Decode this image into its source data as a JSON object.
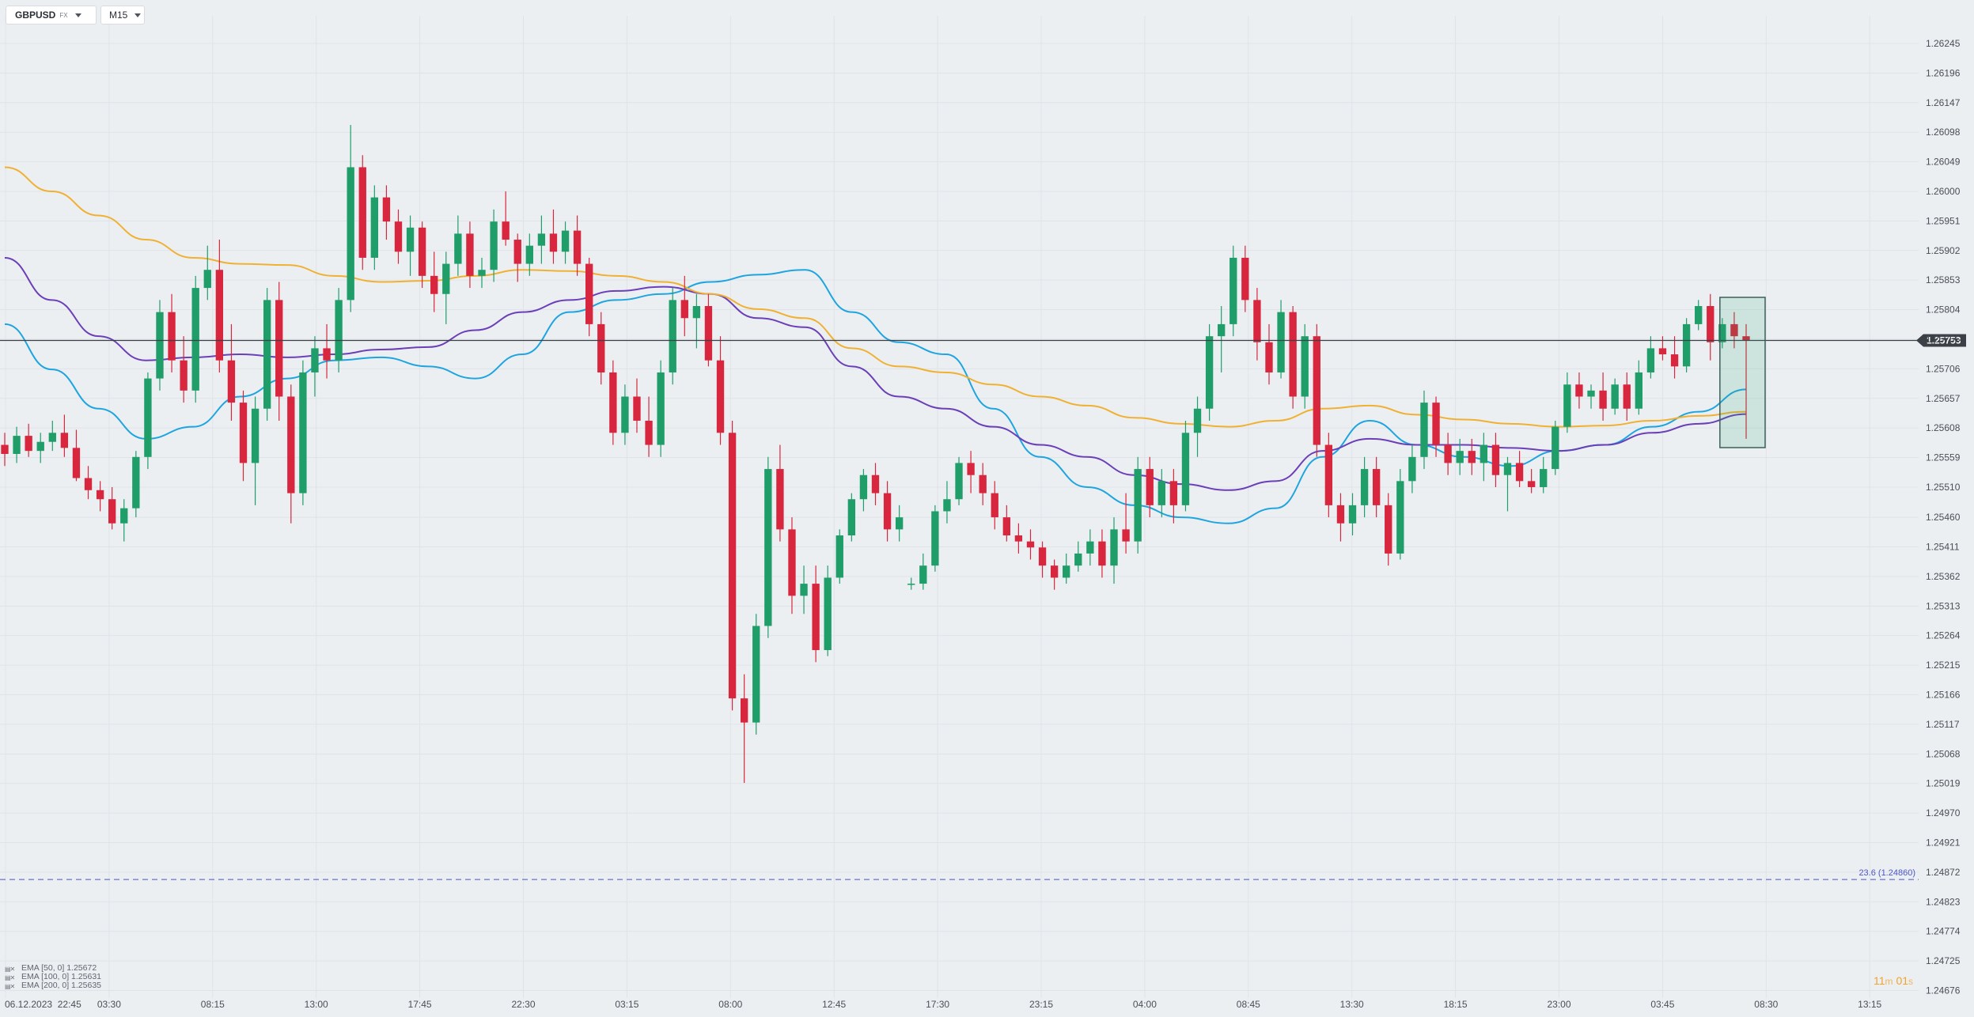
{
  "toolbar": {
    "symbol": "GBPUSD",
    "symbol_sub": "FX",
    "timeframe": "M15"
  },
  "colors": {
    "background": "#eceff2",
    "grid": "#dfe3e8",
    "up_candle": "#1f9e6a",
    "down_candle": "#d7263d",
    "ema50": "#1ea5e0",
    "ema100": "#6b3fb8",
    "ema200": "#f0b132",
    "price_line": "#3b4047",
    "fib_line": "#4a55c9",
    "countdown": "#f2a32a"
  },
  "indicators": [
    {
      "label": "EMA [50, 0]",
      "value": "1.25672",
      "icon": "indicator-settings-icon"
    },
    {
      "label": "EMA [100, 0]",
      "value": "1.25631",
      "icon": "indicator-settings-icon"
    },
    {
      "label": "EMA [200, 0]",
      "value": "1.25635",
      "icon": "indicator-settings-icon"
    }
  ],
  "countdown": {
    "minutes": "11",
    "minutes_unit": "m",
    "seconds": "01",
    "seconds_unit": "s"
  },
  "chart_data": {
    "type": "candlestick",
    "symbol": "GBPUSD",
    "timeframe": "M15",
    "y_ticks": [
      "1.26245",
      "1.26196",
      "1.26147",
      "1.26098",
      "1.26049",
      "1.26000",
      "1.25951",
      "1.25902",
      "1.25853",
      "1.25804",
      "1.25755",
      "1.25706",
      "1.25657",
      "1.25608",
      "1.25559",
      "1.25510",
      "1.25460",
      "1.25411",
      "1.25362",
      "1.25313",
      "1.25264",
      "1.25215",
      "1.25166",
      "1.25117",
      "1.25068",
      "1.25019",
      "1.24970",
      "1.24921",
      "1.24872",
      "1.24823",
      "1.24774",
      "1.24725",
      "1.24676"
    ],
    "x_ticks": [
      "06.12.2023  22:45",
      "03:30",
      "08:15",
      "13:00",
      "17:45",
      "22:30",
      "03:15",
      "08:00",
      "12:45",
      "17:30",
      "23:15",
      "04:00",
      "08:45",
      "13:30",
      "18:15",
      "23:00",
      "03:45",
      "08:30",
      "13:15"
    ],
    "ylim": [
      1.2465,
      1.26268
    ],
    "current_price": {
      "value": "1.25753"
    },
    "fib_level": {
      "label": "23.6 (1.24860)",
      "value": 1.2486
    },
    "ema_series": [
      {
        "name": "EMA [50, 0]",
        "color": "#1ea5e0",
        "values": [
          1.2578,
          1.25705,
          1.2564,
          1.2559,
          1.2561,
          1.2566,
          1.2569,
          1.2572,
          1.25725,
          1.2571,
          1.2569,
          1.2573,
          1.258,
          1.2582,
          1.2583,
          1.2585,
          1.25862,
          1.2587,
          1.258,
          1.2575,
          1.2573,
          1.2564,
          1.2556,
          1.2551,
          1.2548,
          1.2546,
          1.2545,
          1.25475,
          1.2556,
          1.2562,
          1.2558,
          1.2556,
          1.25545,
          1.2557,
          1.2558,
          1.2561,
          1.25635,
          1.25672
        ]
      },
      {
        "name": "EMA [100, 0]",
        "color": "#6b3fb8",
        "values": [
          1.2589,
          1.2582,
          1.2576,
          1.2572,
          1.25725,
          1.2573,
          1.25725,
          1.2573,
          1.25738,
          1.25742,
          1.2577,
          1.258,
          1.2582,
          1.25835,
          1.25842,
          1.2583,
          1.2579,
          1.25775,
          1.2571,
          1.2566,
          1.2564,
          1.2561,
          1.2558,
          1.2556,
          1.2553,
          1.25515,
          1.25505,
          1.2552,
          1.2557,
          1.2559,
          1.2558,
          1.2558,
          1.25575,
          1.2557,
          1.2558,
          1.256,
          1.25615,
          1.25631
        ]
      },
      {
        "name": "EMA [200, 0]",
        "color": "#f0b132",
        "values": [
          1.2604,
          1.26,
          1.2596,
          1.2592,
          1.2589,
          1.2588,
          1.25878,
          1.2586,
          1.2585,
          1.25852,
          1.2586,
          1.2587,
          1.25868,
          1.2586,
          1.2585,
          1.2583,
          1.25805,
          1.2579,
          1.2574,
          1.2571,
          1.257,
          1.2568,
          1.2566,
          1.25645,
          1.25625,
          1.25615,
          1.2561,
          1.2562,
          1.2564,
          1.25645,
          1.2563,
          1.25622,
          1.25615,
          1.2561,
          1.25612,
          1.2562,
          1.25628,
          1.25635
        ]
      }
    ],
    "candles": [
      {
        "o": 1.2558,
        "h": 1.256,
        "l": 1.25545,
        "c": 1.25565
      },
      {
        "o": 1.25565,
        "h": 1.2561,
        "l": 1.2555,
        "c": 1.25595
      },
      {
        "o": 1.25595,
        "h": 1.25615,
        "l": 1.2556,
        "c": 1.2557
      },
      {
        "o": 1.2557,
        "h": 1.256,
        "l": 1.2555,
        "c": 1.25585
      },
      {
        "o": 1.25585,
        "h": 1.2562,
        "l": 1.2557,
        "c": 1.256
      },
      {
        "o": 1.256,
        "h": 1.2563,
        "l": 1.2556,
        "c": 1.25575
      },
      {
        "o": 1.25575,
        "h": 1.25605,
        "l": 1.2552,
        "c": 1.25525
      },
      {
        "o": 1.25525,
        "h": 1.25545,
        "l": 1.2549,
        "c": 1.25505
      },
      {
        "o": 1.25505,
        "h": 1.2552,
        "l": 1.2547,
        "c": 1.2549
      },
      {
        "o": 1.2549,
        "h": 1.2551,
        "l": 1.2544,
        "c": 1.2545
      },
      {
        "o": 1.2545,
        "h": 1.2549,
        "l": 1.2542,
        "c": 1.25475
      },
      {
        "o": 1.25475,
        "h": 1.2557,
        "l": 1.2546,
        "c": 1.2556
      },
      {
        "o": 1.2556,
        "h": 1.257,
        "l": 1.2554,
        "c": 1.2569
      },
      {
        "o": 1.2569,
        "h": 1.2582,
        "l": 1.2567,
        "c": 1.258
      },
      {
        "o": 1.258,
        "h": 1.2583,
        "l": 1.257,
        "c": 1.2572
      },
      {
        "o": 1.2572,
        "h": 1.2576,
        "l": 1.2565,
        "c": 1.2567
      },
      {
        "o": 1.2567,
        "h": 1.2586,
        "l": 1.2565,
        "c": 1.2584
      },
      {
        "o": 1.2584,
        "h": 1.2591,
        "l": 1.2582,
        "c": 1.2587
      },
      {
        "o": 1.2587,
        "h": 1.2592,
        "l": 1.257,
        "c": 1.2572
      },
      {
        "o": 1.2572,
        "h": 1.2578,
        "l": 1.2562,
        "c": 1.2565
      },
      {
        "o": 1.2565,
        "h": 1.2567,
        "l": 1.2552,
        "c": 1.2555
      },
      {
        "o": 1.2555,
        "h": 1.2566,
        "l": 1.2548,
        "c": 1.2564
      },
      {
        "o": 1.2564,
        "h": 1.2584,
        "l": 1.2562,
        "c": 1.2582
      },
      {
        "o": 1.2582,
        "h": 1.2585,
        "l": 1.2562,
        "c": 1.2566
      },
      {
        "o": 1.2566,
        "h": 1.2568,
        "l": 1.2545,
        "c": 1.255
      },
      {
        "o": 1.255,
        "h": 1.2572,
        "l": 1.2548,
        "c": 1.257
      },
      {
        "o": 1.257,
        "h": 1.2576,
        "l": 1.2566,
        "c": 1.2574
      },
      {
        "o": 1.2574,
        "h": 1.2578,
        "l": 1.2569,
        "c": 1.2572
      },
      {
        "o": 1.2572,
        "h": 1.2584,
        "l": 1.257,
        "c": 1.2582
      },
      {
        "o": 1.2582,
        "h": 1.2611,
        "l": 1.258,
        "c": 1.2604
      },
      {
        "o": 1.2604,
        "h": 1.2606,
        "l": 1.2587,
        "c": 1.2589
      },
      {
        "o": 1.2589,
        "h": 1.2601,
        "l": 1.2587,
        "c": 1.2599
      },
      {
        "o": 1.2599,
        "h": 1.2601,
        "l": 1.2592,
        "c": 1.2595
      },
      {
        "o": 1.2595,
        "h": 1.2597,
        "l": 1.2588,
        "c": 1.259
      },
      {
        "o": 1.259,
        "h": 1.2596,
        "l": 1.2586,
        "c": 1.2594
      },
      {
        "o": 1.2594,
        "h": 1.2595,
        "l": 1.2584,
        "c": 1.2586
      },
      {
        "o": 1.2586,
        "h": 1.259,
        "l": 1.258,
        "c": 1.2583
      },
      {
        "o": 1.2583,
        "h": 1.259,
        "l": 1.2578,
        "c": 1.2588
      },
      {
        "o": 1.2588,
        "h": 1.2596,
        "l": 1.2586,
        "c": 1.2593
      },
      {
        "o": 1.2593,
        "h": 1.2595,
        "l": 1.2584,
        "c": 1.2586
      },
      {
        "o": 1.2586,
        "h": 1.2589,
        "l": 1.2584,
        "c": 1.2587
      },
      {
        "o": 1.2587,
        "h": 1.2597,
        "l": 1.2585,
        "c": 1.2595
      },
      {
        "o": 1.2595,
        "h": 1.26,
        "l": 1.2591,
        "c": 1.2592
      },
      {
        "o": 1.2592,
        "h": 1.2593,
        "l": 1.2585,
        "c": 1.2588
      },
      {
        "o": 1.2588,
        "h": 1.2593,
        "l": 1.2586,
        "c": 1.2591
      },
      {
        "o": 1.2591,
        "h": 1.2596,
        "l": 1.2588,
        "c": 1.2593
      },
      {
        "o": 1.2593,
        "h": 1.2597,
        "l": 1.2588,
        "c": 1.259
      },
      {
        "o": 1.259,
        "h": 1.2595,
        "l": 1.2588,
        "c": 1.25935
      },
      {
        "o": 1.25935,
        "h": 1.2596,
        "l": 1.2586,
        "c": 1.2588
      },
      {
        "o": 1.2588,
        "h": 1.2589,
        "l": 1.2576,
        "c": 1.2578
      },
      {
        "o": 1.2578,
        "h": 1.258,
        "l": 1.2568,
        "c": 1.257
      },
      {
        "o": 1.257,
        "h": 1.2572,
        "l": 1.2558,
        "c": 1.256
      },
      {
        "o": 1.256,
        "h": 1.2568,
        "l": 1.2558,
        "c": 1.2566
      },
      {
        "o": 1.2566,
        "h": 1.2569,
        "l": 1.256,
        "c": 1.2562
      },
      {
        "o": 1.2562,
        "h": 1.2566,
        "l": 1.2556,
        "c": 1.2558
      },
      {
        "o": 1.2558,
        "h": 1.2572,
        "l": 1.2556,
        "c": 1.257
      },
      {
        "o": 1.257,
        "h": 1.2584,
        "l": 1.2568,
        "c": 1.2582
      },
      {
        "o": 1.2582,
        "h": 1.2586,
        "l": 1.2576,
        "c": 1.2579
      },
      {
        "o": 1.2579,
        "h": 1.2583,
        "l": 1.2574,
        "c": 1.2581
      },
      {
        "o": 1.2581,
        "h": 1.2583,
        "l": 1.2571,
        "c": 1.2572
      },
      {
        "o": 1.2572,
        "h": 1.2576,
        "l": 1.2558,
        "c": 1.256
      },
      {
        "o": 1.256,
        "h": 1.2562,
        "l": 1.2514,
        "c": 1.2516
      },
      {
        "o": 1.2516,
        "h": 1.252,
        "l": 1.2502,
        "c": 1.2512
      },
      {
        "o": 1.2512,
        "h": 1.253,
        "l": 1.251,
        "c": 1.2528
      },
      {
        "o": 1.2528,
        "h": 1.2556,
        "l": 1.2526,
        "c": 1.2554
      },
      {
        "o": 1.2554,
        "h": 1.2558,
        "l": 1.2542,
        "c": 1.2544
      },
      {
        "o": 1.2544,
        "h": 1.2546,
        "l": 1.253,
        "c": 1.2533
      },
      {
        "o": 1.2533,
        "h": 1.2538,
        "l": 1.253,
        "c": 1.2535
      },
      {
        "o": 1.2535,
        "h": 1.2538,
        "l": 1.2522,
        "c": 1.2524
      },
      {
        "o": 1.2524,
        "h": 1.2538,
        "l": 1.2523,
        "c": 1.2536
      },
      {
        "o": 1.2536,
        "h": 1.2544,
        "l": 1.2535,
        "c": 1.2543
      },
      {
        "o": 1.2543,
        "h": 1.255,
        "l": 1.2542,
        "c": 1.2549
      },
      {
        "o": 1.2549,
        "h": 1.2554,
        "l": 1.2547,
        "c": 1.2553
      },
      {
        "o": 1.2553,
        "h": 1.2555,
        "l": 1.2548,
        "c": 1.255
      },
      {
        "o": 1.255,
        "h": 1.2552,
        "l": 1.2542,
        "c": 1.2544
      },
      {
        "o": 1.2544,
        "h": 1.2548,
        "l": 1.2542,
        "c": 1.2546
      },
      {
        "o": 1.2535,
        "h": 1.2536,
        "l": 1.2534,
        "c": 1.2535
      },
      {
        "o": 1.2535,
        "h": 1.254,
        "l": 1.2534,
        "c": 1.2538
      },
      {
        "o": 1.2538,
        "h": 1.2548,
        "l": 1.2537,
        "c": 1.2547
      },
      {
        "o": 1.2547,
        "h": 1.2552,
        "l": 1.2545,
        "c": 1.2549
      },
      {
        "o": 1.2549,
        "h": 1.2556,
        "l": 1.2548,
        "c": 1.2555
      },
      {
        "o": 1.2555,
        "h": 1.2557,
        "l": 1.255,
        "c": 1.2553
      },
      {
        "o": 1.2553,
        "h": 1.2555,
        "l": 1.2548,
        "c": 1.255
      },
      {
        "o": 1.255,
        "h": 1.2552,
        "l": 1.2544,
        "c": 1.2546
      },
      {
        "o": 1.2546,
        "h": 1.2548,
        "l": 1.2542,
        "c": 1.2543
      },
      {
        "o": 1.2543,
        "h": 1.2545,
        "l": 1.254,
        "c": 1.2542
      },
      {
        "o": 1.2542,
        "h": 1.2544,
        "l": 1.2539,
        "c": 1.2541
      },
      {
        "o": 1.2541,
        "h": 1.2542,
        "l": 1.2536,
        "c": 1.2538
      },
      {
        "o": 1.2538,
        "h": 1.2539,
        "l": 1.2534,
        "c": 1.2536
      },
      {
        "o": 1.2536,
        "h": 1.254,
        "l": 1.2535,
        "c": 1.2538
      },
      {
        "o": 1.2538,
        "h": 1.2542,
        "l": 1.2537,
        "c": 1.254
      },
      {
        "o": 1.254,
        "h": 1.2544,
        "l": 1.2538,
        "c": 1.2542
      },
      {
        "o": 1.2542,
        "h": 1.2544,
        "l": 1.2536,
        "c": 1.2538
      },
      {
        "o": 1.2538,
        "h": 1.2546,
        "l": 1.2535,
        "c": 1.2544
      },
      {
        "o": 1.2544,
        "h": 1.255,
        "l": 1.254,
        "c": 1.2542
      },
      {
        "o": 1.2542,
        "h": 1.2556,
        "l": 1.254,
        "c": 1.2554
      },
      {
        "o": 1.2554,
        "h": 1.2556,
        "l": 1.2546,
        "c": 1.2548
      },
      {
        "o": 1.2548,
        "h": 1.2554,
        "l": 1.2546,
        "c": 1.2552
      },
      {
        "o": 1.2552,
        "h": 1.2554,
        "l": 1.2545,
        "c": 1.2548
      },
      {
        "o": 1.2548,
        "h": 1.2562,
        "l": 1.2547,
        "c": 1.256
      },
      {
        "o": 1.256,
        "h": 1.2566,
        "l": 1.2556,
        "c": 1.2564
      },
      {
        "o": 1.2564,
        "h": 1.2578,
        "l": 1.2562,
        "c": 1.2576
      },
      {
        "o": 1.2576,
        "h": 1.2581,
        "l": 1.257,
        "c": 1.2578
      },
      {
        "o": 1.2578,
        "h": 1.2591,
        "l": 1.2576,
        "c": 1.2589
      },
      {
        "o": 1.2589,
        "h": 1.2591,
        "l": 1.258,
        "c": 1.2582
      },
      {
        "o": 1.2582,
        "h": 1.2584,
        "l": 1.2572,
        "c": 1.2575
      },
      {
        "o": 1.2575,
        "h": 1.2578,
        "l": 1.2568,
        "c": 1.257
      },
      {
        "o": 1.257,
        "h": 1.2582,
        "l": 1.2569,
        "c": 1.258
      },
      {
        "o": 1.258,
        "h": 1.2581,
        "l": 1.2564,
        "c": 1.2566
      },
      {
        "o": 1.2566,
        "h": 1.2578,
        "l": 1.2564,
        "c": 1.2576
      },
      {
        "o": 1.2576,
        "h": 1.2578,
        "l": 1.2556,
        "c": 1.2558
      },
      {
        "o": 1.2558,
        "h": 1.256,
        "l": 1.2546,
        "c": 1.2548
      },
      {
        "o": 1.2548,
        "h": 1.255,
        "l": 1.2542,
        "c": 1.2545
      },
      {
        "o": 1.2545,
        "h": 1.255,
        "l": 1.2543,
        "c": 1.2548
      },
      {
        "o": 1.2548,
        "h": 1.2556,
        "l": 1.2546,
        "c": 1.2554
      },
      {
        "o": 1.2554,
        "h": 1.2556,
        "l": 1.2546,
        "c": 1.2548
      },
      {
        "o": 1.2548,
        "h": 1.255,
        "l": 1.2538,
        "c": 1.254
      },
      {
        "o": 1.254,
        "h": 1.2554,
        "l": 1.2539,
        "c": 1.2552
      },
      {
        "o": 1.2552,
        "h": 1.2558,
        "l": 1.255,
        "c": 1.2556
      },
      {
        "o": 1.2556,
        "h": 1.2567,
        "l": 1.2554,
        "c": 1.2565
      },
      {
        "o": 1.2565,
        "h": 1.2566,
        "l": 1.2556,
        "c": 1.2558
      },
      {
        "o": 1.2558,
        "h": 1.256,
        "l": 1.2553,
        "c": 1.2555
      },
      {
        "o": 1.2555,
        "h": 1.2559,
        "l": 1.2553,
        "c": 1.2557
      },
      {
        "o": 1.2557,
        "h": 1.2559,
        "l": 1.2553,
        "c": 1.2555
      },
      {
        "o": 1.2555,
        "h": 1.256,
        "l": 1.2552,
        "c": 1.2558
      },
      {
        "o": 1.2558,
        "h": 1.256,
        "l": 1.2551,
        "c": 1.2553
      },
      {
        "o": 1.2553,
        "h": 1.2556,
        "l": 1.2547,
        "c": 1.2555
      },
      {
        "o": 1.2555,
        "h": 1.2557,
        "l": 1.2551,
        "c": 1.2552
      },
      {
        "o": 1.2552,
        "h": 1.2554,
        "l": 1.255,
        "c": 1.2551
      },
      {
        "o": 1.2551,
        "h": 1.2556,
        "l": 1.255,
        "c": 1.2554
      },
      {
        "o": 1.2554,
        "h": 1.2562,
        "l": 1.2553,
        "c": 1.2561
      },
      {
        "o": 1.2561,
        "h": 1.257,
        "l": 1.256,
        "c": 1.2568
      },
      {
        "o": 1.2568,
        "h": 1.257,
        "l": 1.2564,
        "c": 1.2566
      },
      {
        "o": 1.2566,
        "h": 1.2568,
        "l": 1.2564,
        "c": 1.2567
      },
      {
        "o": 1.2567,
        "h": 1.257,
        "l": 1.2562,
        "c": 1.2564
      },
      {
        "o": 1.2564,
        "h": 1.2569,
        "l": 1.2563,
        "c": 1.2568
      },
      {
        "o": 1.2568,
        "h": 1.257,
        "l": 1.2562,
        "c": 1.2564
      },
      {
        "o": 1.2564,
        "h": 1.2572,
        "l": 1.2563,
        "c": 1.257
      },
      {
        "o": 1.257,
        "h": 1.2576,
        "l": 1.2569,
        "c": 1.2574
      },
      {
        "o": 1.2574,
        "h": 1.2576,
        "l": 1.2572,
        "c": 1.2573
      },
      {
        "o": 1.2573,
        "h": 1.2576,
        "l": 1.2569,
        "c": 1.2571
      },
      {
        "o": 1.2571,
        "h": 1.2579,
        "l": 1.257,
        "c": 1.2578
      },
      {
        "o": 1.2578,
        "h": 1.2582,
        "l": 1.2577,
        "c": 1.2581
      },
      {
        "o": 1.2581,
        "h": 1.2583,
        "l": 1.2572,
        "c": 1.2575
      },
      {
        "o": 1.2575,
        "h": 1.2579,
        "l": 1.2574,
        "c": 1.2578
      },
      {
        "o": 1.2578,
        "h": 1.258,
        "l": 1.2574,
        "c": 1.2576
      },
      {
        "o": 1.2576,
        "h": 1.2578,
        "l": 1.2559,
        "c": 1.25753
      }
    ]
  }
}
